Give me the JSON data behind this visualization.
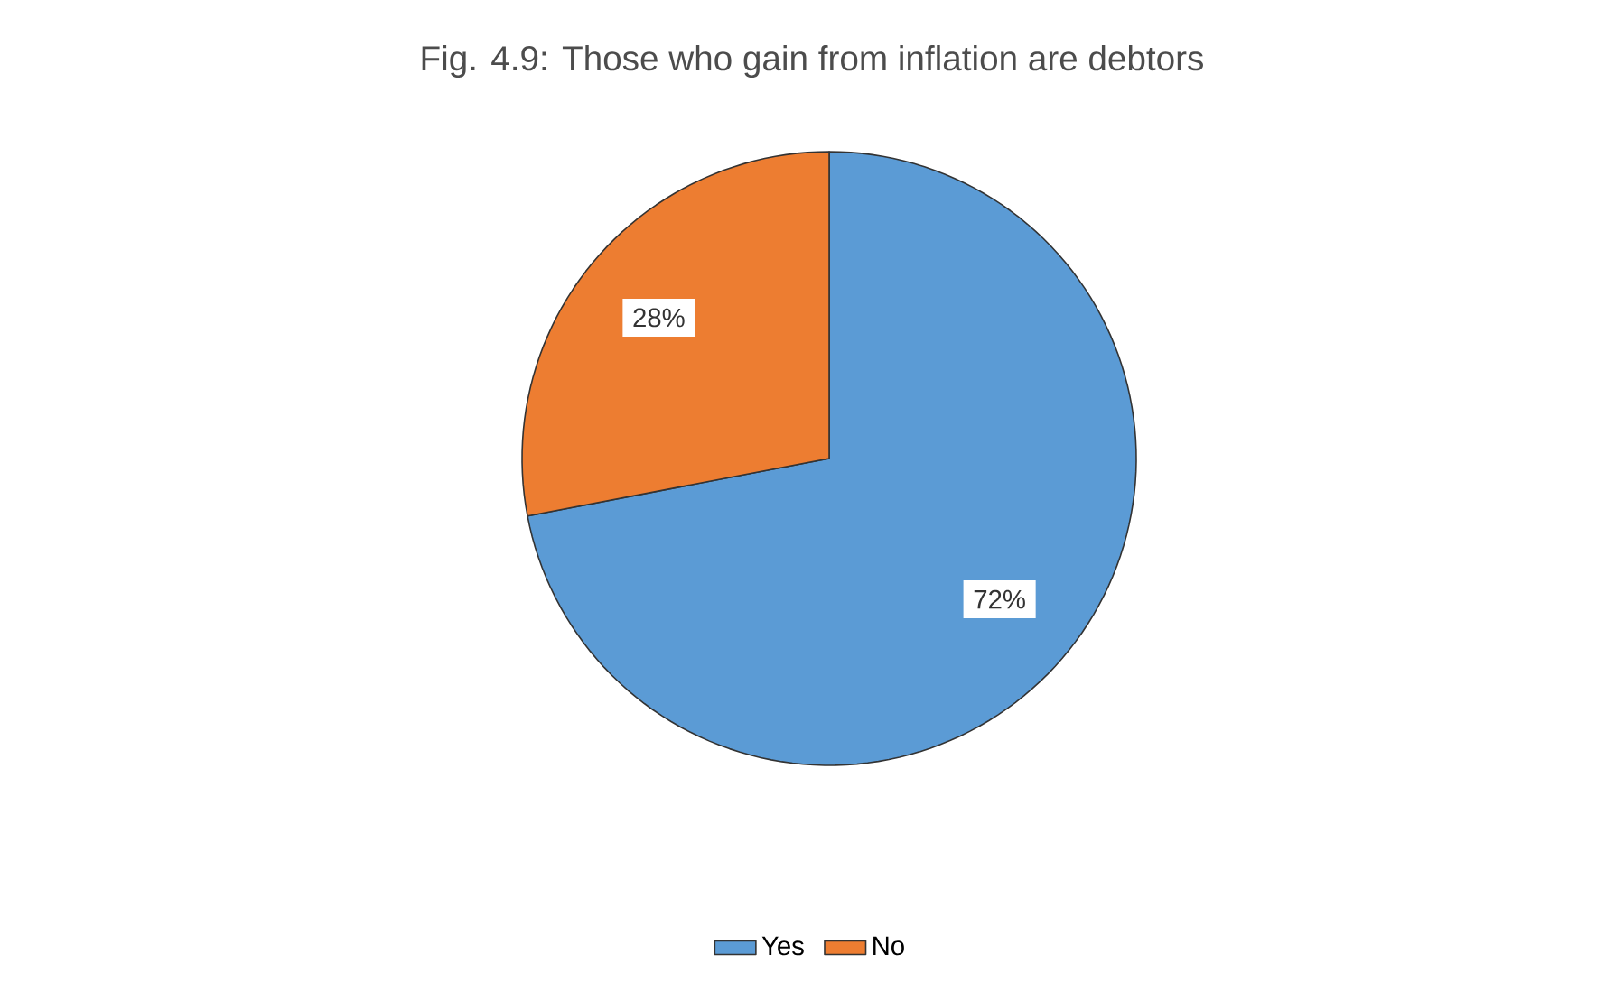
{
  "chart_data": {
    "type": "pie",
    "title": "Fig. 4.9: Those who gain from inflation are debtors",
    "categories": [
      "Yes",
      "No"
    ],
    "values": [
      72,
      28
    ],
    "colors": [
      "#5b9bd5",
      "#ed7d31"
    ],
    "value_labels": [
      "72%",
      "28%"
    ],
    "legend": "bottom"
  }
}
